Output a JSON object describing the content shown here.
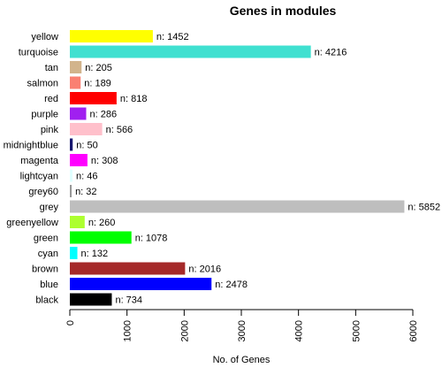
{
  "chart_data": {
    "type": "bar",
    "orientation": "horizontal",
    "title": "Genes in modules",
    "xlabel": "No. of Genes",
    "ylabel": "",
    "xlim": [
      0,
      6000
    ],
    "xticks": [
      0,
      1000,
      2000,
      3000,
      4000,
      5000,
      6000
    ],
    "grid": false,
    "legend": "none",
    "data_label_prefix": "n: ",
    "categories": [
      "yellow",
      "turquoise",
      "tan",
      "salmon",
      "red",
      "purple",
      "pink",
      "midnightblue",
      "magenta",
      "lightcyan",
      "grey60",
      "grey",
      "greenyellow",
      "green",
      "cyan",
      "brown",
      "blue",
      "black"
    ],
    "values": [
      1452,
      4216,
      205,
      189,
      818,
      286,
      566,
      50,
      308,
      46,
      32,
      5852,
      260,
      1078,
      132,
      2016,
      2478,
      734
    ],
    "bar_colors": [
      "#FFFF00",
      "#40E0D0",
      "#D2B48C",
      "#FA8072",
      "#FF0000",
      "#A020F0",
      "#FFC0CB",
      "#191970",
      "#FF00FF",
      "#E0FFFF",
      "#999999",
      "#BEBEBE",
      "#ADFF2F",
      "#00FF00",
      "#00FFFF",
      "#A52A2A",
      "#0000FF",
      "#000000"
    ]
  }
}
